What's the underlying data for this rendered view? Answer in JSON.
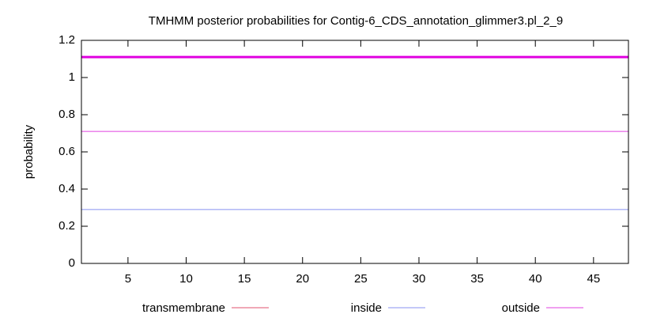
{
  "chart_data": {
    "type": "line",
    "title": "TMHMM posterior probabilities for Contig-6_CDS_annotation_glimmer3.pl_2_9",
    "ylabel": "probability",
    "x": [
      1,
      48
    ],
    "series": [
      {
        "name": "transmembrane",
        "color": "#e0506e",
        "values": [
          0,
          0
        ]
      },
      {
        "name": "inside",
        "color": "#8890f0",
        "values": [
          0.29,
          0.29
        ]
      },
      {
        "name": "outside",
        "color": "#e040e0",
        "values": [
          0.71,
          0.71
        ]
      }
    ],
    "outside_bar": {
      "y": 1.11,
      "x": [
        1,
        48
      ],
      "color": "#e000e0"
    },
    "xlim": [
      1,
      48
    ],
    "xticks": [
      5,
      10,
      15,
      20,
      25,
      30,
      35,
      40,
      45
    ],
    "ylim": [
      0,
      1.2
    ],
    "yticks": [
      0,
      0.2,
      0.4,
      0.6,
      0.8,
      1,
      1.2
    ],
    "legend": "bottom"
  }
}
